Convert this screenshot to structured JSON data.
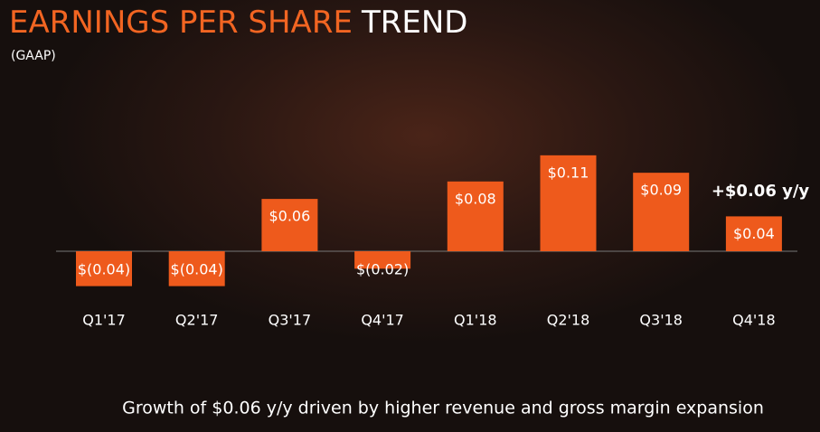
{
  "chart_data": {
    "type": "bar",
    "title": "EARNINGS PER SHARE",
    "title_highlight": "TREND",
    "subtitle": "(GAAP)",
    "categories": [
      "Q1'17",
      "Q2'17",
      "Q3'17",
      "Q4'17",
      "Q1'18",
      "Q2'18",
      "Q3'18",
      "Q4'18"
    ],
    "values": [
      -0.04,
      -0.04,
      0.06,
      -0.02,
      0.08,
      0.11,
      0.09,
      0.04
    ],
    "value_labels": [
      "$(0.04)",
      "$(0.04)",
      "$0.06",
      "$(0.02)",
      "$0.08",
      "$0.11",
      "$0.09",
      "$0.04"
    ],
    "color": "#ee5a1c",
    "annotation": "+$0.06 y/y",
    "footnote": "Growth of $0.06 y/y driven by higher revenue and gross margin expansion"
  }
}
